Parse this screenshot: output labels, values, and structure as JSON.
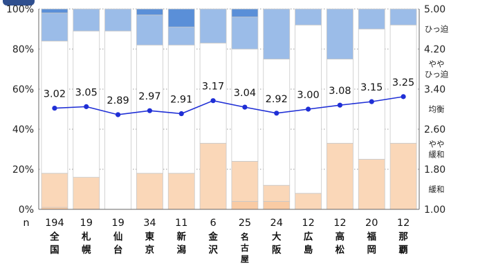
{
  "chart_data": {
    "type": "bar",
    "stacked": "percent",
    "categories": [
      "全国",
      "札幌",
      "仙台",
      "東京",
      "新潟",
      "金沢",
      "名古屋",
      "大阪",
      "広島",
      "高松",
      "福岡",
      "那覇"
    ],
    "n_label": "n",
    "counts": [
      "194",
      "19",
      "19",
      "34",
      "11",
      "6",
      "25",
      "24",
      "12",
      "12",
      "20",
      "12"
    ],
    "series": [
      {
        "name": "緩和",
        "color": "#f9cba4",
        "values": [
          1,
          0,
          0,
          0,
          0,
          0,
          4,
          4,
          0,
          0,
          0,
          0
        ]
      },
      {
        "name": "やや緩和",
        "color": "#fad7b8",
        "values": [
          17,
          16,
          0,
          18,
          18,
          33,
          20,
          8,
          8,
          33,
          25,
          33
        ]
      },
      {
        "name": "均衡",
        "color": "#ffffff",
        "values": [
          66,
          73,
          89,
          64,
          64,
          50,
          56,
          63,
          84,
          42,
          65,
          59
        ]
      },
      {
        "name": "ややひっ迫",
        "color": "#9bbce8",
        "values": [
          14,
          11,
          11,
          15,
          9,
          17,
          16,
          25,
          8,
          25,
          10,
          8
        ]
      },
      {
        "name": "ひっ迫",
        "color": "#5a8fd8",
        "values": [
          2,
          0,
          0,
          3,
          9,
          0,
          4,
          0,
          0,
          0,
          0,
          0
        ]
      }
    ],
    "di": {
      "values": [
        3.02,
        3.05,
        2.89,
        2.97,
        2.91,
        3.17,
        3.04,
        2.92,
        3.0,
        3.08,
        3.15,
        3.25
      ],
      "labels": [
        "3.02",
        "3.05",
        "2.89",
        "2.97",
        "2.91",
        "3.17",
        "3.04",
        "2.92",
        "3.00",
        "3.08",
        "3.15",
        "3.25"
      ],
      "color": "#1f2fd6"
    },
    "y_left": {
      "min": 0,
      "max": 100,
      "ticks": [
        0,
        20,
        40,
        60,
        80,
        100
      ],
      "tick_labels": [
        "0%",
        "20%",
        "40%",
        "60%",
        "80%",
        "100%"
      ]
    },
    "y_right": {
      "min": 1.0,
      "max": 5.0,
      "ticks": [
        1.0,
        1.8,
        2.6,
        3.4,
        4.2,
        5.0
      ],
      "tick_labels": [
        "1.00",
        "1.80",
        "2.60",
        "3.40",
        "4.20",
        "5.00"
      ]
    },
    "band_labels": [
      "ひっ迫",
      "やや\nひっ迫",
      "均衡",
      "やや\n緩和",
      "緩和"
    ],
    "grid": "dotted-horizontal",
    "legend": "none"
  }
}
